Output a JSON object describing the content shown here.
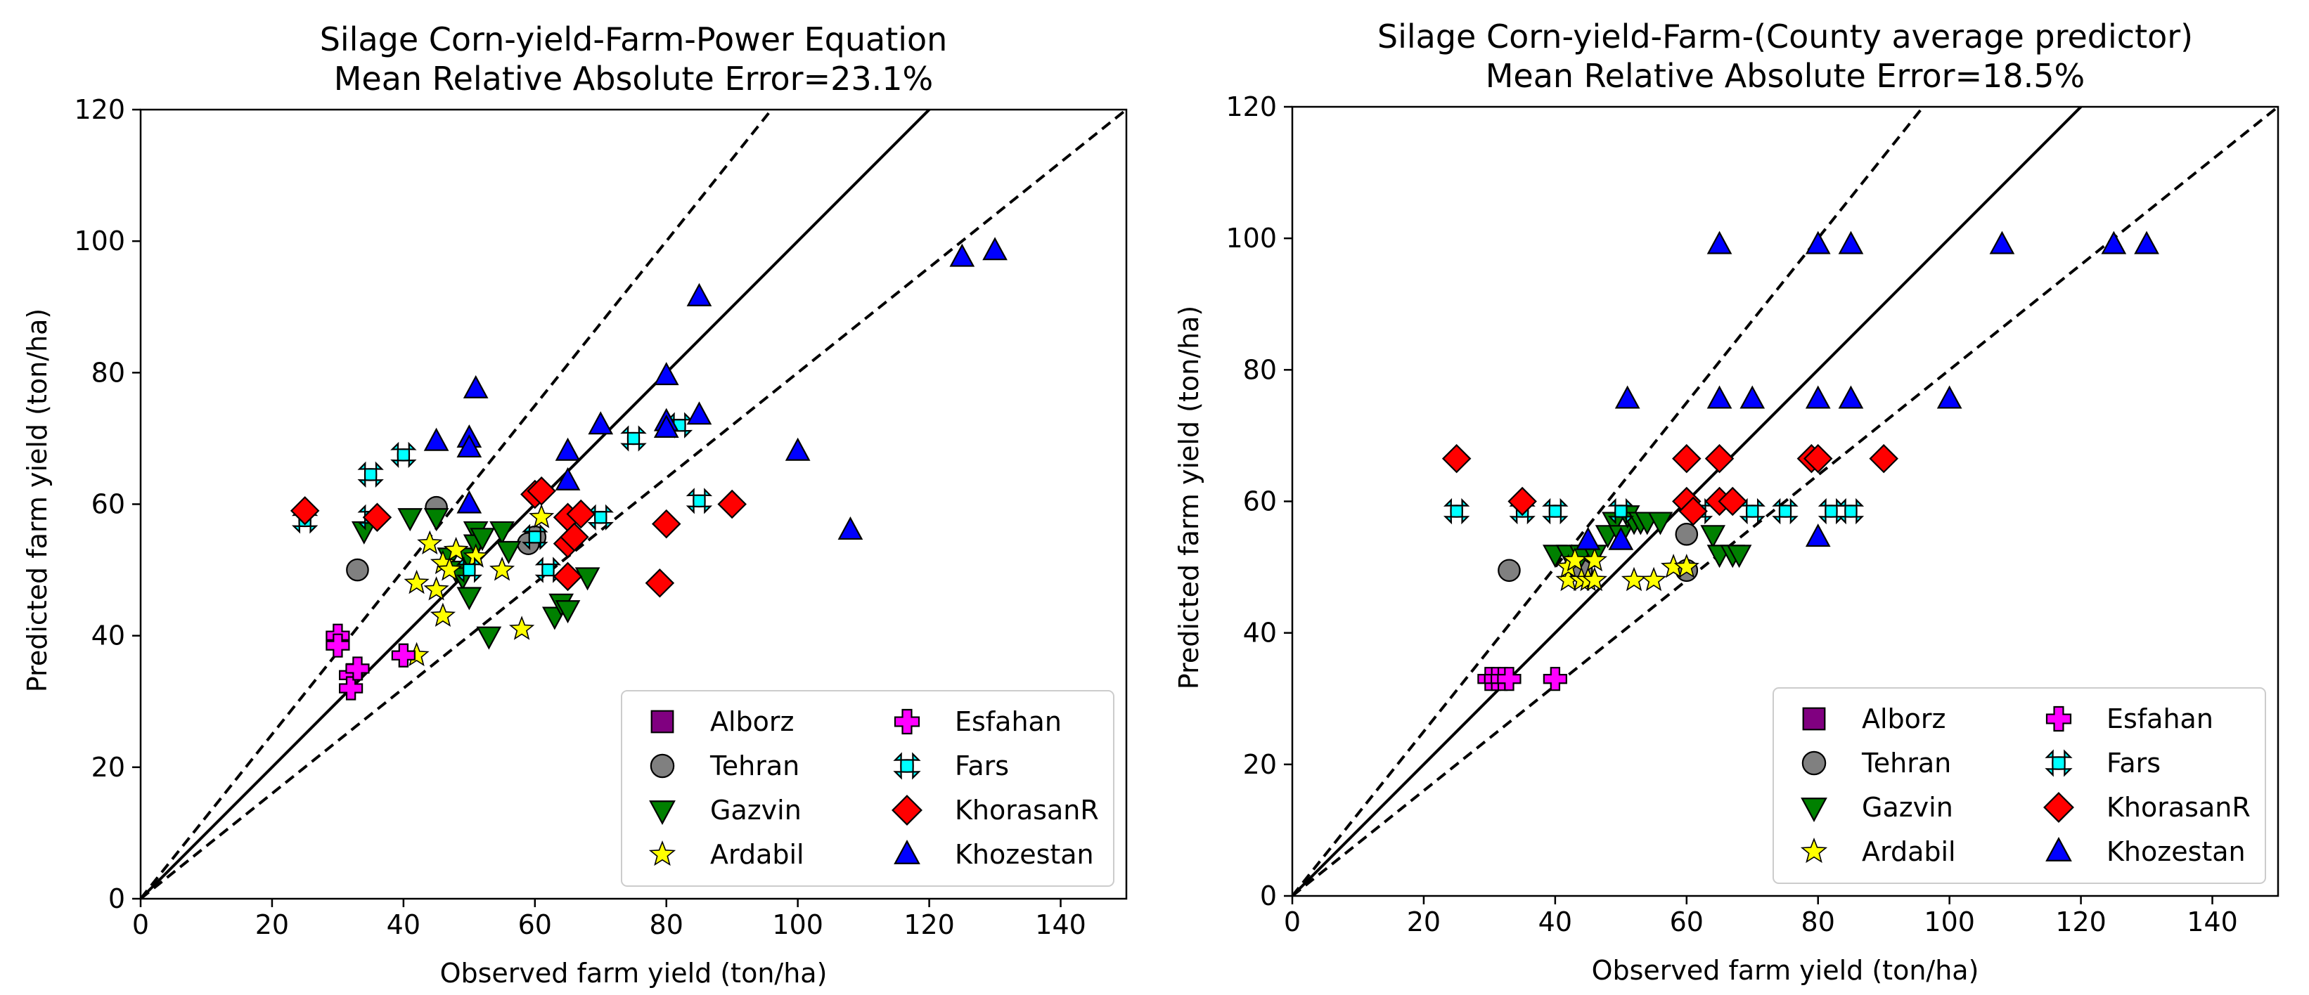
{
  "chart_data": [
    {
      "type": "scatter",
      "title_line1": "Silage Corn-yield-Farm-Power Equation",
      "title_line2": "Mean Relative Absolute Error=23.1%",
      "xlabel": "Observed farm yield (ton/ha)",
      "ylabel": "Predicted farm yield (ton/ha)",
      "xlim": [
        0,
        150
      ],
      "ylim": [
        0,
        120
      ],
      "xticks": [
        0,
        20,
        40,
        60,
        80,
        100,
        120,
        140
      ],
      "yticks": [
        0,
        20,
        40,
        60,
        80,
        100,
        120
      ],
      "grid": false,
      "legend_position": "bottom-right",
      "reference_lines": [
        {
          "slope": 1.0,
          "style": "solid"
        },
        {
          "slope": 1.25,
          "style": "dashed"
        },
        {
          "slope": 0.8,
          "style": "dashed"
        }
      ],
      "series": [
        {
          "name": "Alborz",
          "marker": "square",
          "color": "#800080",
          "points": []
        },
        {
          "name": "Tehran",
          "marker": "circle",
          "color": "#808080",
          "points": [
            [
              33,
              50
            ],
            [
              45,
              59.5
            ],
            [
              60,
              55
            ],
            [
              59,
              54
            ]
          ]
        },
        {
          "name": "Gazvin",
          "marker": "triangle-down",
          "color": "#008000",
          "points": [
            [
              34,
              56
            ],
            [
              41,
              58
            ],
            [
              45,
              58
            ],
            [
              47,
              52
            ],
            [
              48,
              50
            ],
            [
              49,
              49
            ],
            [
              50,
              52
            ],
            [
              50,
              46
            ],
            [
              51,
              56
            ],
            [
              51,
              54
            ],
            [
              52,
              55
            ],
            [
              53,
              40
            ],
            [
              55,
              56
            ],
            [
              56,
              53
            ],
            [
              63,
              43
            ],
            [
              64,
              45
            ],
            [
              65,
              44
            ],
            [
              68,
              49
            ]
          ]
        },
        {
          "name": "Ardabil",
          "marker": "star",
          "color": "#ffff00",
          "points": [
            [
              42,
              37
            ],
            [
              42,
              48
            ],
            [
              44,
              54
            ],
            [
              45,
              47
            ],
            [
              46,
              51
            ],
            [
              46,
              43
            ],
            [
              47,
              50
            ],
            [
              48,
              53
            ],
            [
              51,
              52
            ],
            [
              55,
              50
            ],
            [
              58,
              41
            ],
            [
              61,
              58
            ]
          ]
        },
        {
          "name": "Esfahan",
          "marker": "plus",
          "color": "#ff00ff",
          "points": [
            [
              30,
              40
            ],
            [
              30,
              38.5
            ],
            [
              32,
              34
            ],
            [
              32,
              32
            ],
            [
              33,
              35
            ],
            [
              40,
              37
            ]
          ]
        },
        {
          "name": "Fars",
          "marker": "x",
          "color": "#00ffff",
          "points": [
            [
              25,
              57.5
            ],
            [
              35,
              58
            ],
            [
              35,
              64.5
            ],
            [
              40,
              67.5
            ],
            [
              50,
              50
            ],
            [
              60,
              55
            ],
            [
              62,
              50
            ],
            [
              70,
              58
            ],
            [
              75,
              70
            ],
            [
              82,
              72
            ],
            [
              85,
              60.5
            ]
          ]
        },
        {
          "name": "KhorasanR",
          "marker": "diamond",
          "color": "#ff0000",
          "points": [
            [
              25,
              59
            ],
            [
              36,
              58
            ],
            [
              60,
              61.5
            ],
            [
              61,
              62
            ],
            [
              65,
              58
            ],
            [
              65,
              54
            ],
            [
              65,
              49
            ],
            [
              66,
              55
            ],
            [
              67,
              58.5
            ],
            [
              80,
              57
            ],
            [
              79,
              48
            ],
            [
              90,
              60
            ]
          ]
        },
        {
          "name": "Khozestan",
          "marker": "triangle-up",
          "color": "#0000ff",
          "points": [
            [
              45,
              69.5
            ],
            [
              50,
              70
            ],
            [
              50,
              68.5
            ],
            [
              51,
              77.5
            ],
            [
              50,
              60
            ],
            [
              65,
              68
            ],
            [
              65,
              63.5
            ],
            [
              70,
              72
            ],
            [
              80,
              79.5
            ],
            [
              80,
              72.5
            ],
            [
              80,
              71.5
            ],
            [
              85,
              91.5
            ],
            [
              85,
              73.5
            ],
            [
              100,
              68
            ],
            [
              108,
              56
            ],
            [
              125,
              97.5
            ],
            [
              130,
              98.5
            ]
          ]
        }
      ]
    },
    {
      "type": "scatter",
      "title_line1": "Silage Corn-yield-Farm-(County average predictor)",
      "title_line2": "Mean Relative Absolute Error=18.5%",
      "xlabel": "Observed farm yield (ton/ha)",
      "ylabel": "Predicted farm yield (ton/ha)",
      "xlim": [
        0,
        150
      ],
      "ylim": [
        0,
        120
      ],
      "xticks": [
        0,
        20,
        40,
        60,
        80,
        100,
        120,
        140
      ],
      "yticks": [
        0,
        20,
        40,
        60,
        80,
        100,
        120
      ],
      "grid": false,
      "legend_position": "bottom-right",
      "reference_lines": [
        {
          "slope": 1.0,
          "style": "solid"
        },
        {
          "slope": 1.25,
          "style": "dashed"
        },
        {
          "slope": 0.8,
          "style": "dashed"
        }
      ],
      "series": [
        {
          "name": "Alborz",
          "marker": "square",
          "color": "#800080",
          "points": []
        },
        {
          "name": "Tehran",
          "marker": "circle",
          "color": "#808080",
          "points": [
            [
              33,
              49.5
            ],
            [
              43,
              50
            ],
            [
              44,
              49.5
            ],
            [
              60,
              55
            ],
            [
              60,
              49.5
            ]
          ]
        },
        {
          "name": "Gazvin",
          "marker": "triangle-down",
          "color": "#008000",
          "points": [
            [
              40,
              52
            ],
            [
              42,
              52
            ],
            [
              44,
              52
            ],
            [
              46,
              52
            ],
            [
              48,
              55
            ],
            [
              49,
              57
            ],
            [
              50,
              55
            ],
            [
              51,
              58
            ],
            [
              52,
              57
            ],
            [
              53,
              57
            ],
            [
              54,
              57
            ],
            [
              56,
              57
            ],
            [
              64,
              55
            ],
            [
              65,
              52
            ],
            [
              67,
              52
            ],
            [
              68,
              52
            ]
          ]
        },
        {
          "name": "Ardabil",
          "marker": "star",
          "color": "#ffff00",
          "points": [
            [
              42,
              48
            ],
            [
              42,
              50
            ],
            [
              43,
              51
            ],
            [
              44,
              48
            ],
            [
              45,
              48
            ],
            [
              46,
              51
            ],
            [
              46,
              48
            ],
            [
              52,
              48
            ],
            [
              55,
              48
            ],
            [
              58,
              50
            ],
            [
              60,
              50
            ]
          ]
        },
        {
          "name": "Esfahan",
          "marker": "plus",
          "color": "#ff00ff",
          "points": [
            [
              30,
              33
            ],
            [
              31,
              33
            ],
            [
              32,
              33
            ],
            [
              33,
              33
            ],
            [
              40,
              33
            ]
          ]
        },
        {
          "name": "Fars",
          "marker": "x",
          "color": "#00ffff",
          "points": [
            [
              25,
              58.5
            ],
            [
              35,
              58.5
            ],
            [
              40,
              58.5
            ],
            [
              50,
              58.5
            ],
            [
              62,
              58.5
            ],
            [
              70,
              58.5
            ],
            [
              75,
              58.5
            ],
            [
              82,
              58.5
            ],
            [
              85,
              58.5
            ]
          ]
        },
        {
          "name": "KhorasanR",
          "marker": "diamond",
          "color": "#ff0000",
          "points": [
            [
              25,
              66.5
            ],
            [
              35,
              60
            ],
            [
              60,
              66.5
            ],
            [
              60,
              60
            ],
            [
              61,
              58.5
            ],
            [
              65,
              66.5
            ],
            [
              65,
              60
            ],
            [
              67,
              60
            ],
            [
              79,
              66.5
            ],
            [
              80,
              66.5
            ],
            [
              90,
              66.5
            ]
          ]
        },
        {
          "name": "Khozestan",
          "marker": "triangle-up",
          "color": "#0000ff",
          "points": [
            [
              45,
              54
            ],
            [
              50,
              54
            ],
            [
              51,
              75.5
            ],
            [
              65,
              99
            ],
            [
              65,
              75.5
            ],
            [
              70,
              75.5
            ],
            [
              80,
              99
            ],
            [
              80,
              75.5
            ],
            [
              80,
              54.5
            ],
            [
              85,
              99
            ],
            [
              85,
              75.5
            ],
            [
              100,
              75.5
            ],
            [
              108,
              99
            ],
            [
              125,
              99
            ],
            [
              130,
              99
            ]
          ]
        }
      ]
    }
  ]
}
